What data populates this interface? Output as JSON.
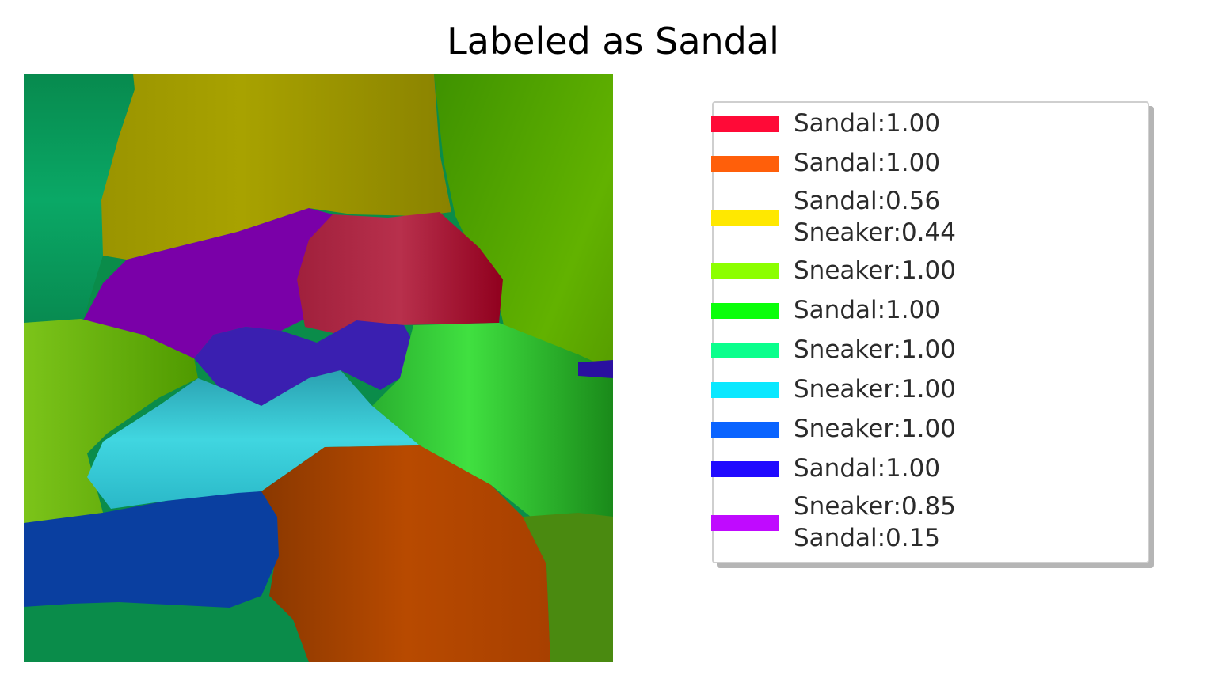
{
  "title": "Labeled as Sandal",
  "legend": {
    "entries": [
      {
        "color": "#ff0a37",
        "lines": [
          "Sandal:1.00"
        ]
      },
      {
        "color": "#ff5f0a",
        "lines": [
          "Sandal:1.00"
        ]
      },
      {
        "color": "#ffe800",
        "lines": [
          "Sandal:0.56",
          "Sneaker:0.44"
        ]
      },
      {
        "color": "#8cff00",
        "lines": [
          "Sneaker:1.00"
        ]
      },
      {
        "color": "#0aff0a",
        "lines": [
          "Sandal:1.00"
        ]
      },
      {
        "color": "#0aff8c",
        "lines": [
          "Sneaker:1.00"
        ]
      },
      {
        "color": "#0ae8ff",
        "lines": [
          "Sneaker:1.00"
        ]
      },
      {
        "color": "#0a64ff",
        "lines": [
          "Sneaker:1.00"
        ]
      },
      {
        "color": "#200aff",
        "lines": [
          "Sandal:1.00"
        ]
      },
      {
        "color": "#c00aff",
        "lines": [
          "Sneaker:0.85",
          "Sandal:0.15"
        ]
      }
    ]
  },
  "segments": {
    "background_color": "#0a8c4a",
    "regions": [
      {
        "name": "dark-green-left-segment",
        "color": "#079a5a"
      },
      {
        "name": "yellow-olive-segment",
        "color": "#a39c00"
      },
      {
        "name": "green-right-segment",
        "color": "#55a000"
      },
      {
        "name": "purple-segment",
        "color": "#7a00a8"
      },
      {
        "name": "red-segment",
        "color": "#9a0024"
      },
      {
        "name": "lime-left-segment",
        "color": "#63a800"
      },
      {
        "name": "indigo-center-segment",
        "color": "#3a1fb0"
      },
      {
        "name": "bright-green-right-segment",
        "color": "#2ea030"
      },
      {
        "name": "cyan-segment",
        "color": "#38c9d6"
      },
      {
        "name": "orange-segment",
        "color": "#b04800"
      },
      {
        "name": "blue-segment",
        "color": "#0a3fa0"
      },
      {
        "name": "teal-bottom-left-segment",
        "color": "#0a8c4a"
      },
      {
        "name": "olive-bottom-right-segment",
        "color": "#4a8a10"
      },
      {
        "name": "small-indigo-segment",
        "color": "#2a10a0"
      }
    ]
  }
}
